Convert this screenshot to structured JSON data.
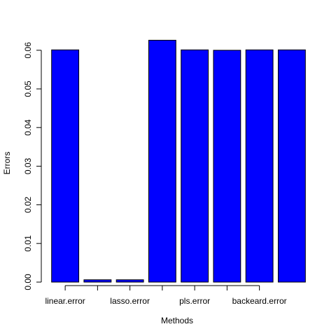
{
  "chart_data": {
    "type": "bar",
    "title": "",
    "xlabel": "Methods",
    "ylabel": "Errors",
    "ylim": [
      0,
      0.0625
    ],
    "yticks": [
      0.0,
      0.01,
      0.02,
      0.03,
      0.04,
      0.05,
      0.06
    ],
    "ytick_labels": [
      "0.00",
      "0.01",
      "0.02",
      "0.03",
      "0.04",
      "0.05",
      "0.06"
    ],
    "bar_color": "#0000FF",
    "bar_border_color": "#000000",
    "categories": [
      "linear.error",
      "",
      "lasso.error",
      "",
      "pls.error",
      "",
      "backeard.error",
      ""
    ],
    "values": [
      0.0601,
      0.0006,
      0.0006,
      0.0626,
      0.0601,
      0.06,
      0.0601,
      0.0601
    ],
    "grid": false,
    "legend": null
  }
}
